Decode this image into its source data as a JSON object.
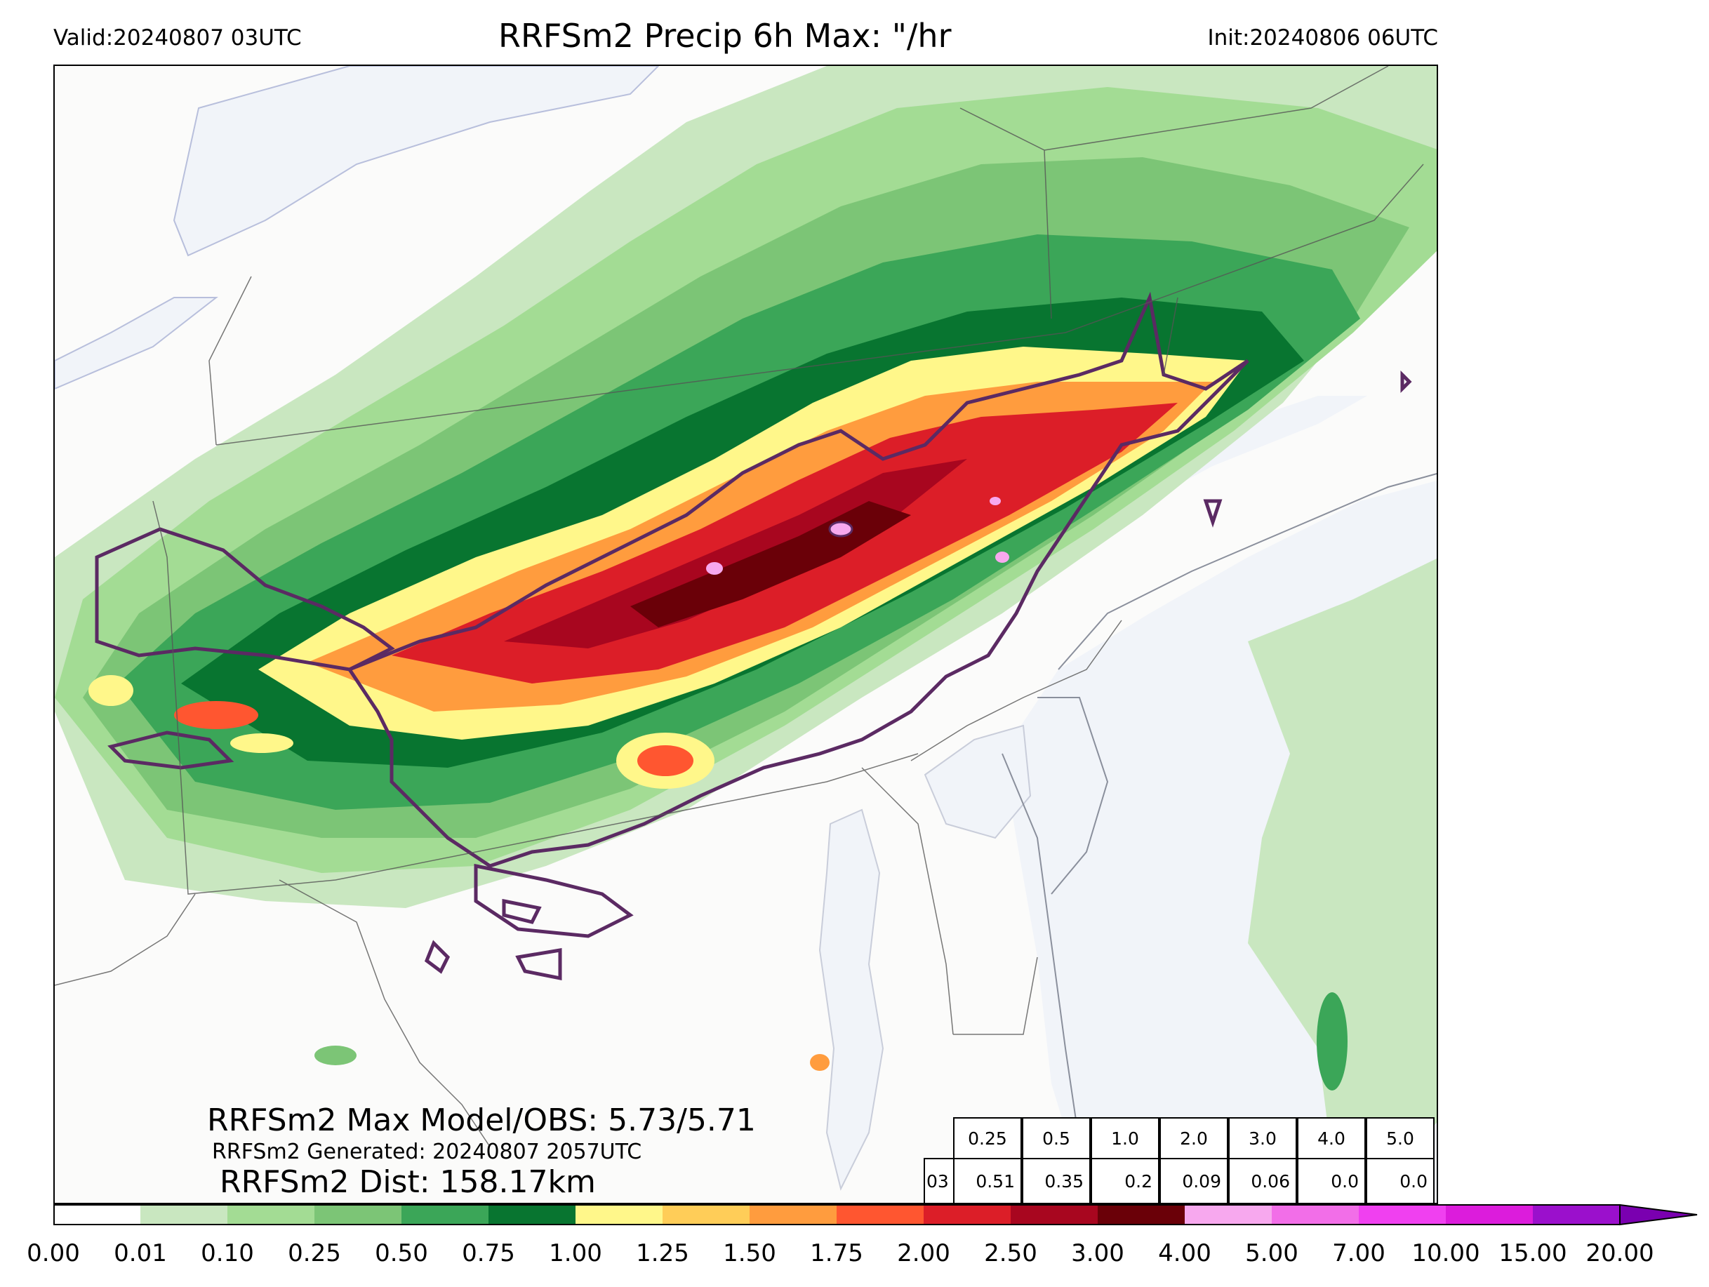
{
  "header": {
    "valid": "Valid:20240807 03UTC",
    "title": "RRFSm2 Precip 6h Max: \"/hr",
    "init": "Init:20240806 06UTC"
  },
  "info": {
    "max_line": "RRFSm2 Max Model/OBS: 5.73/5.71",
    "generated_line": "RRFSm2 Generated: 20240807 2057UTC",
    "dist_line": "RRFSm2 Dist: 158.17km"
  },
  "stats_table": {
    "thresholds": [
      "0.25",
      "0.5",
      "1.0",
      "2.0",
      "3.0",
      "4.0",
      "5.0"
    ],
    "row_label": "03",
    "values": [
      "0.51",
      "0.35",
      "0.2",
      "0.09",
      "0.06",
      "0.0",
      "0.0"
    ]
  },
  "colorbar": {
    "ticks": [
      "0.00",
      "0.01",
      "0.10",
      "0.25",
      "0.50",
      "0.75",
      "1.00",
      "1.25",
      "1.50",
      "1.75",
      "2.00",
      "2.50",
      "3.00",
      "4.00",
      "5.00",
      "7.00",
      "10.00",
      "15.00",
      "20.00"
    ],
    "colors": [
      "#ffffff",
      "#c9e7c0",
      "#a3dc94",
      "#7cc576",
      "#3ba658",
      "#087530",
      "#fff78a",
      "#ffcd58",
      "#ff9c3e",
      "#ff5630",
      "#dc1e28",
      "#a8061f",
      "#6a0008",
      "#f7a8ee",
      "#f26ee8",
      "#f040f0",
      "#dc1cdc",
      "#9b10cc"
    ],
    "extend_color": "#7a00b0"
  },
  "map_colors": {
    "land": "#fbfbfa",
    "water": "#f1f4f9",
    "light_green": "#c9e7c0",
    "green": "#a3dc94",
    "mid_green": "#7cc576",
    "dark_green": "#3ba658",
    "deep_green": "#087530",
    "yellow": "#fff78a",
    "orange": "#ff9c3e",
    "red": "#dc1e28",
    "dark_red": "#6a0008",
    "pink": "#f7a8ee",
    "obs_contour": "#5b2a63",
    "borders": "#555555"
  }
}
